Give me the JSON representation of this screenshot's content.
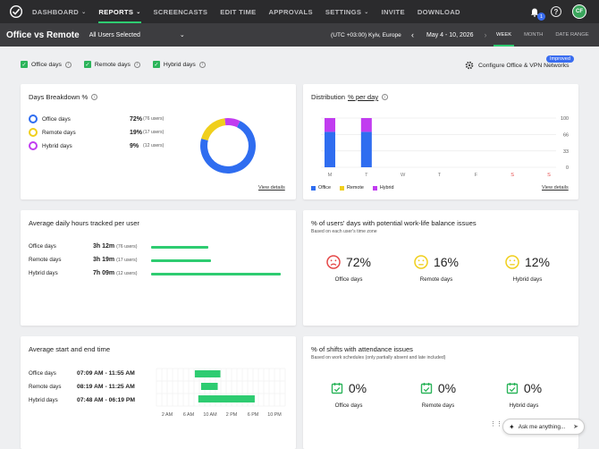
{
  "nav": {
    "items": [
      {
        "label": "DASHBOARD",
        "chev": true,
        "active": false
      },
      {
        "label": "REPORTS",
        "chev": true,
        "active": true
      },
      {
        "label": "SCREENCASTS",
        "chev": false,
        "active": false
      },
      {
        "label": "EDIT TIME",
        "chev": false,
        "active": false
      },
      {
        "label": "APPROVALS",
        "chev": false,
        "active": false
      },
      {
        "label": "SETTINGS",
        "chev": true,
        "active": false
      },
      {
        "label": "INVITE",
        "chev": false,
        "active": false
      },
      {
        "label": "DOWNLOAD",
        "chev": false,
        "active": false
      }
    ],
    "notification_count": "1",
    "help_label": "?",
    "avatar_initials": "CF"
  },
  "subheader": {
    "title": "Office vs Remote",
    "user_select": "All Users Selected",
    "timezone": "(UTC +03:00) Kyiv, Europe",
    "date_range": "May 4 - 10, 2026",
    "tabs": [
      {
        "label": "WEEK",
        "active": true
      },
      {
        "label": "MONTH",
        "active": false
      },
      {
        "label": "DATE RANGE",
        "active": false
      }
    ]
  },
  "filters": {
    "office": "Office days",
    "remote": "Remote days",
    "hybrid": "Hybrid days",
    "configure": "Configure Office & VPN Networks",
    "badge": "Improved"
  },
  "colors": {
    "office": "#2f6df0",
    "remote": "#f0cf1c",
    "hybrid": "#c13cf0",
    "green": "#2ecc71",
    "sad": "#e54848"
  },
  "days_breakdown": {
    "title": "Days Breakdown %",
    "rows": [
      {
        "label": "Office days",
        "pct": "72%",
        "count": "(76 users)"
      },
      {
        "label": "Remote days",
        "pct": "19%",
        "count": "(17 users)"
      },
      {
        "label": "Hybrid days",
        "pct": "9%",
        "count": "(12 users)"
      }
    ],
    "donut_values": [
      72,
      19,
      9
    ],
    "link": "View details"
  },
  "distribution": {
    "title_prefix": "Distribution",
    "title_link": "% per day",
    "legend": [
      "Office",
      "Remote",
      "Hybrid"
    ],
    "link": "View details"
  },
  "chart_data": {
    "type": "bar",
    "categories": [
      "M",
      "T",
      "W",
      "T",
      "F",
      "S",
      "S"
    ],
    "series": [
      {
        "name": "Office",
        "values": [
          72,
          72,
          0,
          0,
          0,
          0,
          0
        ]
      },
      {
        "name": "Remote",
        "values": [
          0,
          0,
          0,
          0,
          0,
          0,
          0
        ]
      },
      {
        "name": "Hybrid",
        "values": [
          28,
          28,
          0,
          0,
          0,
          0,
          0
        ]
      }
    ],
    "yticks": [
      "0",
      "33",
      "66",
      "100"
    ],
    "ylim": [
      0,
      100
    ],
    "weekend_color": "#e54848"
  },
  "avg_hours": {
    "title": "Average daily hours tracked per user",
    "rows": [
      {
        "label": "Office days",
        "value": "3h 12m",
        "count": "(76 users)",
        "fraction": 0.43
      },
      {
        "label": "Remote days",
        "value": "3h 19m",
        "count": "(17 users)",
        "fraction": 0.45
      },
      {
        "label": "Hybrid days",
        "value": "7h 09m",
        "count": "(12 users)",
        "fraction": 0.98
      }
    ]
  },
  "work_life": {
    "title": "% of users' days with potential work-life balance issues",
    "subtitle": "Based on each user's time zone",
    "cols": [
      {
        "label": "Office days",
        "value": "72%",
        "face": "sad"
      },
      {
        "label": "Remote days",
        "value": "16%",
        "face": "neutral"
      },
      {
        "label": "Hybrid days",
        "value": "12%",
        "face": "neutral"
      }
    ]
  },
  "start_end": {
    "title": "Average start and end time",
    "rows": [
      {
        "label": "Office days",
        "value": "07:09 AM - 11:55 AM",
        "start": 7.15,
        "end": 11.92
      },
      {
        "label": "Remote days",
        "value": "08:19 AM - 11:25 AM",
        "start": 8.32,
        "end": 11.42
      },
      {
        "label": "Hybrid days",
        "value": "07:48 AM - 06:19 PM",
        "start": 7.8,
        "end": 18.32
      }
    ],
    "xticks": [
      "2 AM",
      "6 AM",
      "10 AM",
      "2 PM",
      "6 PM",
      "10 PM"
    ]
  },
  "attendance": {
    "title": "% of shifts with attendance issues",
    "subtitle": "Based on work schedules (only partially absent and late included)",
    "cols": [
      {
        "label": "Office days",
        "value": "0%"
      },
      {
        "label": "Remote days",
        "value": "0%"
      },
      {
        "label": "Hybrid days",
        "value": "0%"
      }
    ]
  },
  "assistant": {
    "placeholder": "Ask me anything..."
  }
}
